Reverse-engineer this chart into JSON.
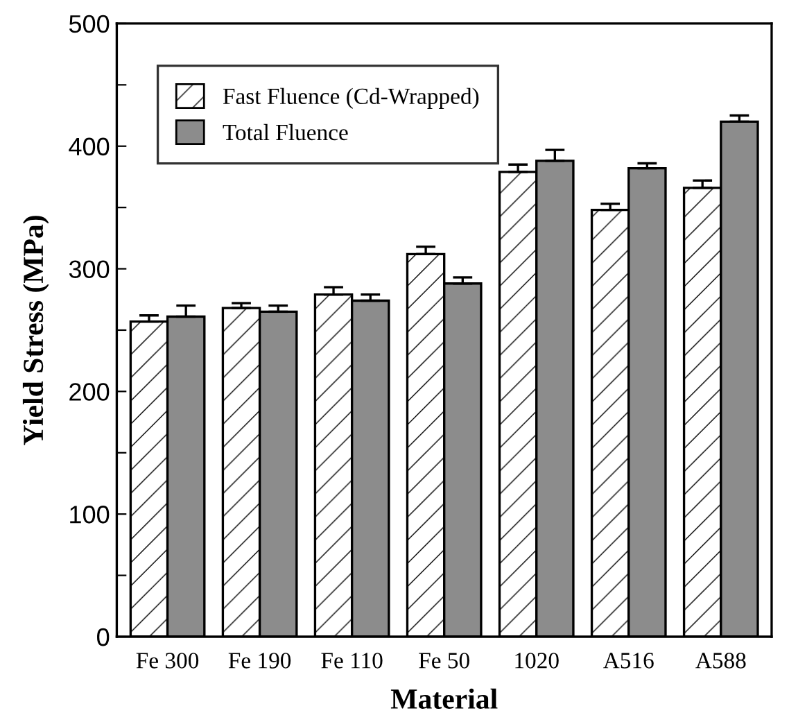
{
  "chart_data": {
    "type": "bar",
    "xlabel": "Material",
    "ylabel": "Yield Stress (MPa)",
    "categories": [
      "Fe 300",
      "Fe 190",
      "Fe 110",
      "Fe 50",
      "1020",
      "A516",
      "A588"
    ],
    "series": [
      {
        "name": "Fast Fluence (Cd-Wrapped)",
        "color": "#ffffff",
        "values": [
          257,
          268,
          279,
          312,
          379,
          348,
          366
        ],
        "errors": [
          [
            257,
            262
          ],
          [
            268,
            272
          ],
          [
            279,
            285
          ],
          [
            312,
            318
          ],
          [
            379,
            385
          ],
          [
            348,
            353
          ],
          [
            366,
            372
          ]
        ]
      },
      {
        "name": "Total Fluence",
        "color": "#8c8c8c",
        "values": [
          261,
          265,
          274,
          288,
          388,
          382,
          420
        ],
        "errors": [
          [
            261,
            270
          ],
          [
            265,
            270
          ],
          [
            274,
            279
          ],
          [
            288,
            293
          ],
          [
            388,
            397
          ],
          [
            382,
            386
          ],
          [
            420,
            425
          ]
        ]
      }
    ],
    "ylim": [
      0,
      500
    ],
    "yticks": [
      0,
      {
        "value": 50,
        "label": null
      },
      100,
      {
        "value": 150,
        "label": null
      },
      200,
      {
        "value": 250,
        "label": null
      },
      300,
      {
        "value": 350,
        "label": null
      },
      400,
      {
        "value": 450,
        "label": null
      },
      500
    ],
    "grid": false,
    "legend": "top left"
  }
}
